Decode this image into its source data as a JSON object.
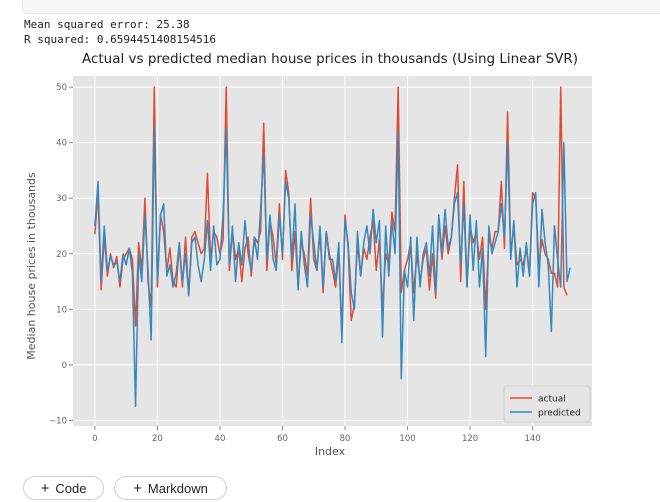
{
  "output": {
    "mse_line": "Mean squared error: 25.38",
    "r2_line": "R squared: 0.6594451408154516"
  },
  "toolbar": {
    "add_code_label": "Code",
    "add_markdown_label": "Markdown",
    "plus_icon": "plus-icon"
  },
  "chart_data": {
    "type": "line",
    "title": "Actual vs predicted median house prices in thousands (Using Linear SVR)",
    "xlabel": "Index",
    "ylabel": "Median house prices in thousands",
    "xlim": [
      -7,
      159
    ],
    "ylim": [
      -11,
      52
    ],
    "xticks": [
      0,
      20,
      40,
      60,
      80,
      100,
      120,
      140
    ],
    "yticks": [
      -10,
      0,
      10,
      20,
      30,
      40,
      50
    ],
    "grid": true,
    "legend_position": "bottom-right",
    "colors": {
      "actual": "#e24a33",
      "predicted": "#348abd",
      "background": "#e5e5e5",
      "grid": "#ffffff"
    },
    "series": [
      {
        "name": "actual",
        "values": [
          23.5,
          31,
          13.5,
          23,
          16,
          20,
          17.5,
          19.5,
          14,
          19,
          20,
          21,
          19,
          7,
          22,
          17,
          30,
          15,
          10.5,
          50,
          14,
          27,
          24,
          17,
          21,
          15,
          14,
          21.5,
          14,
          23,
          12.5,
          23,
          24,
          22,
          20,
          21,
          34.5,
          19,
          24,
          23,
          20,
          22.5,
          50,
          17,
          24,
          19,
          21,
          15,
          21,
          23,
          16,
          23,
          22,
          24,
          43.5,
          17,
          26,
          23,
          18,
          29,
          19,
          35,
          31,
          17,
          24,
          14,
          22,
          20,
          16,
          30,
          19,
          17,
          24,
          13,
          24,
          20,
          17,
          14,
          20,
          6,
          27,
          21,
          8,
          11,
          22,
          16,
          21,
          19,
          23,
          26,
          17,
          22.5,
          10,
          20,
          18,
          27.5,
          24,
          50,
          13,
          17,
          19,
          22,
          13,
          20,
          15,
          19,
          21,
          13.5,
          20,
          12,
          26,
          19,
          25,
          20,
          23,
          30,
          36,
          15,
          33,
          14,
          25,
          22,
          24,
          19,
          23,
          10,
          23,
          21,
          24,
          24,
          33,
          21,
          45.5,
          20,
          25,
          18,
          19,
          18,
          21,
          16,
          31,
          30,
          18,
          22.5,
          20,
          19,
          16.5,
          16.5,
          14,
          50,
          14,
          12.5
        ]
      },
      {
        "name": "predicted",
        "values": [
          25,
          33,
          15,
          25,
          17,
          19.5,
          18,
          18.5,
          15,
          20,
          18,
          21,
          16.5,
          -7.5,
          20,
          15,
          27,
          17,
          4.5,
          43,
          15,
          27,
          29,
          16,
          18,
          14,
          16.5,
          22,
          15,
          20,
          12.5,
          22,
          23,
          18,
          15,
          19,
          26,
          17,
          25,
          18,
          19,
          27,
          42.5,
          18,
          25,
          15,
          22,
          18,
          26,
          20,
          17,
          23,
          19,
          28,
          38,
          19,
          27,
          19,
          17,
          27,
          20,
          33,
          30,
          19,
          29,
          13.5,
          24,
          18,
          14,
          27,
          22,
          17,
          25,
          14,
          24,
          19,
          19,
          15,
          22,
          4,
          26,
          22,
          13,
          10,
          24,
          16,
          22,
          25,
          20,
          28,
          22,
          26,
          5,
          25,
          16,
          26,
          20,
          42,
          -2.5,
          17,
          14,
          23,
          8,
          23,
          14,
          20,
          22,
          16,
          25,
          13,
          27,
          20,
          28,
          21,
          23,
          29,
          31,
          18,
          29,
          14,
          27,
          17,
          26,
          14,
          21,
          1.5,
          25,
          20,
          22,
          24,
          29,
          23,
          40,
          19,
          26,
          14,
          21,
          16,
          22,
          16,
          29,
          31,
          14,
          28,
          22,
          18,
          6,
          25,
          19,
          14,
          40,
          15,
          17.5
        ]
      }
    ]
  }
}
